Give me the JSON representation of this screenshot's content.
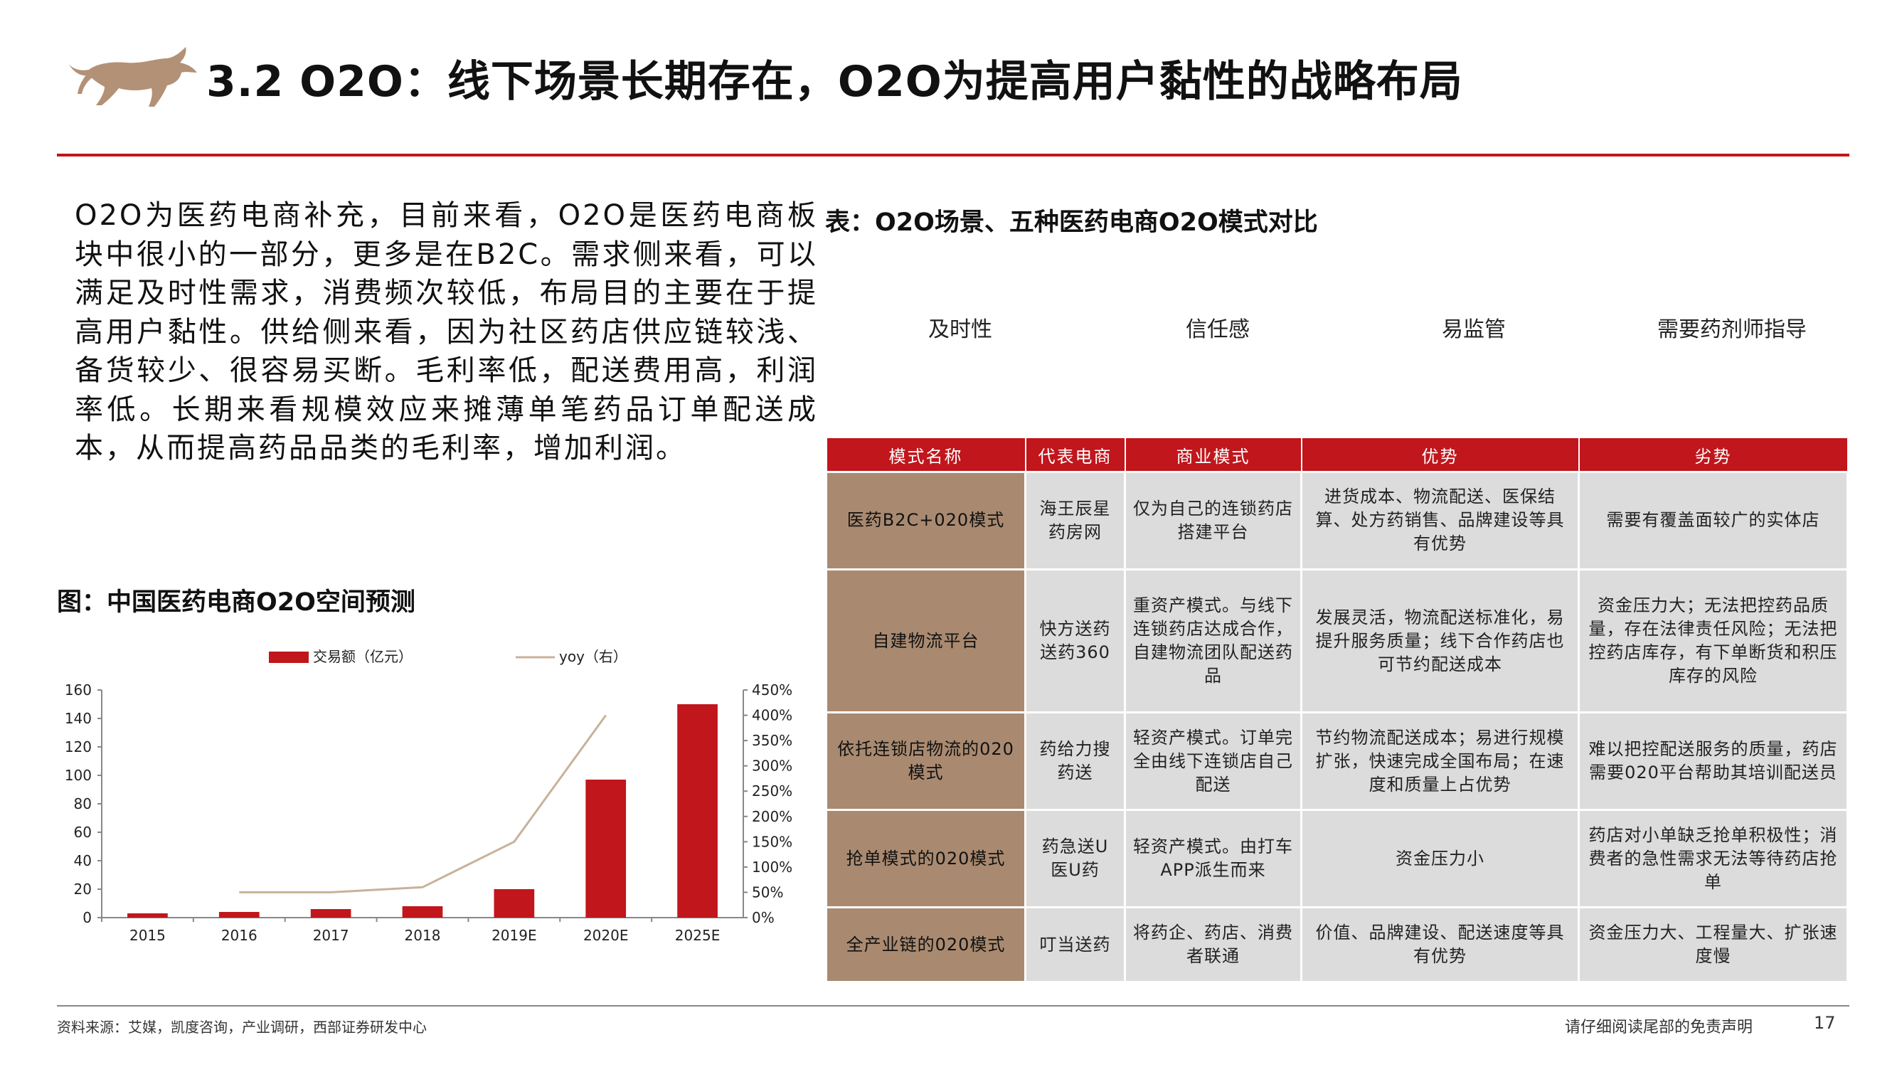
{
  "header": {
    "title": "3.2 O2O：线下场景长期存在，O2O为提高用户黏性的战略布局"
  },
  "left_text": "O2O为医药电商补充，目前来看，O2O是医药电商板块中很小的一部分，更多是在B2C。需求侧来看，可以满足及时性需求，消费频次较低，布局目的主要在于提高用户黏性。供给侧来看，因为社区药店供应链较浅、备货较少、很容易买断。毛利率低，配送费用高，利润率低。长期来看规模效应来摊薄单笔药品订单配送成本，从而提高药品品类的毛利率，增加利润。",
  "chart_title": "图：中国医药电商O2O空间预测",
  "chart_data": {
    "type": "bar",
    "categories": [
      "2015",
      "2016",
      "2017",
      "2018",
      "2019E",
      "2020E",
      "2025E"
    ],
    "series": [
      {
        "name": "交易额（亿元）",
        "type": "bar",
        "axis": "left",
        "values": [
          3,
          4,
          6,
          8,
          20,
          97,
          150
        ]
      },
      {
        "name": "yoy（右）",
        "type": "line",
        "axis": "right",
        "values": [
          null,
          50,
          50,
          60,
          150,
          400,
          null
        ]
      }
    ],
    "ylim_left": [
      0,
      160
    ],
    "yticks_left": [
      "0",
      "20",
      "40",
      "60",
      "80",
      "100",
      "120",
      "140",
      "160"
    ],
    "ylim_right": [
      0,
      450
    ],
    "yticks_right": [
      "0%",
      "50%",
      "100%",
      "150%",
      "200%",
      "250%",
      "300%",
      "350%",
      "400%",
      "450%"
    ],
    "legend_position": "top"
  },
  "table_title": "表：O2O场景、五种医药电商O2O模式对比",
  "features": [
    "及时性",
    "信任感",
    "易监管",
    "需要药剂师指导"
  ],
  "table": {
    "headers": [
      "模式名称",
      "代表电商",
      "商业模式",
      "优势",
      "劣势"
    ],
    "rows": [
      [
        "医药B2C+020模式",
        "海王辰星药房网",
        "仅为自己的连锁药店搭建平台",
        "进货成本、物流配送、医保结算、处方药销售、品牌建设等具有优势",
        "需要有覆盖面较广的实体店"
      ],
      [
        "自建物流平台",
        "快方送药送药360",
        "重资产模式。与线下连锁药店达成合作，自建物流团队配送药品",
        "发展灵活，物流配送标准化，易提升服务质量；线下合作药店也可节约配送成本",
        "资金压力大；无法把控药品质量，存在法律责任风险；无法把控药店库存，有下单断货和积压库存的风险"
      ],
      [
        "依托连锁店物流的020模式",
        "药给力搜药送",
        "轻资产模式。订单完全由线下连锁店自己配送",
        "节约物流配送成本；易进行规模扩张，快速完成全国布局；在速度和质量上占优势",
        "难以把控配送服务的质量，药店需要020平台帮助其培训配送员"
      ],
      [
        "抢单模式的020模式",
        "药急送U医U药",
        "轻资产模式。由打车APP派生而来",
        "资金压力小",
        "药店对小单缺乏抢单积极性；消费者的急性需求无法等待药店抢单"
      ],
      [
        "全产业链的020模式",
        "叮当送药",
        "将药企、药店、消费者联通",
        "价值、品牌建设、配送速度等具有优势",
        "资金压力大、工程量大、扩张速度慢"
      ]
    ]
  },
  "footer": {
    "source": "资料来源：艾媒，凯度咨询，产业调研，西部证券研发中心",
    "disclaimer": "请仔细阅读尾部的免责声明",
    "page": "17"
  },
  "colors": {
    "accent": "#c0161c",
    "bull": "#b39176",
    "name_cell": "#a98a70",
    "cell": "#dcdcdc",
    "yoy_line": "#c8b29a"
  },
  "icons": {
    "logo": "bull-logo-icon"
  }
}
